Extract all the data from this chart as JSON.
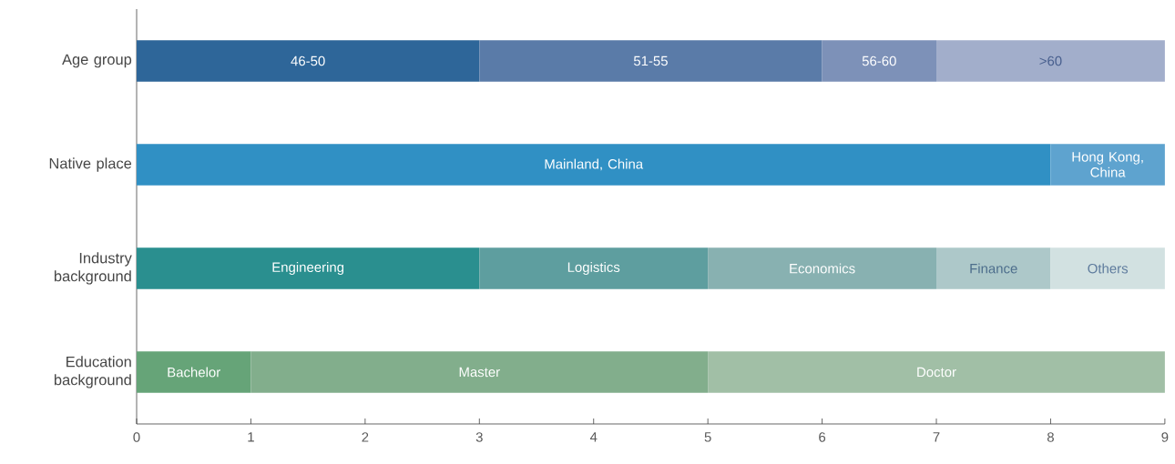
{
  "chart_data": {
    "type": "bar",
    "orientation": "horizontal",
    "stacked": true,
    "categories": [
      "Age group",
      "Native place",
      "Industry background",
      "Education background"
    ],
    "series": [
      {
        "values": [
          3,
          8,
          3,
          1
        ],
        "colors": [
          "#2e6699",
          "#3090c4",
          "#2a8f8f",
          "#66a478"
        ],
        "value_labels": [
          "46-50",
          "Mainland, China",
          "Engineering",
          "Bachelor"
        ]
      },
      {
        "values": [
          3,
          1,
          2,
          4
        ],
        "colors": [
          "#5a7ba8",
          "#5ea3cf",
          "#5e9e9f",
          "#82ae8c"
        ],
        "value_labels": [
          "51-55",
          "Hong Kong, China",
          "Logistics",
          "Master"
        ]
      },
      {
        "values": [
          1,
          null,
          2,
          4
        ],
        "colors": [
          "#7d91b8",
          null,
          "#88b1b1",
          "#a1bfa6"
        ],
        "value_labels": [
          "56-60",
          null,
          "Economics",
          "Doctor"
        ]
      },
      {
        "values": [
          2,
          null,
          1,
          null
        ],
        "colors": [
          "#a2aecb",
          null,
          "#adc8c9",
          null
        ],
        "value_labels": [
          ">60",
          null,
          "Finance",
          null
        ]
      },
      {
        "values": [
          null,
          null,
          1,
          null
        ],
        "colors": [
          null,
          null,
          "#d2e1e1",
          null
        ],
        "value_labels": [
          null,
          null,
          "Others",
          null
        ]
      }
    ],
    "xlim": [
      0,
      9
    ],
    "xticks": [
      0,
      1,
      2,
      3,
      4,
      5,
      6,
      7,
      8,
      9
    ],
    "grid": false
  }
}
